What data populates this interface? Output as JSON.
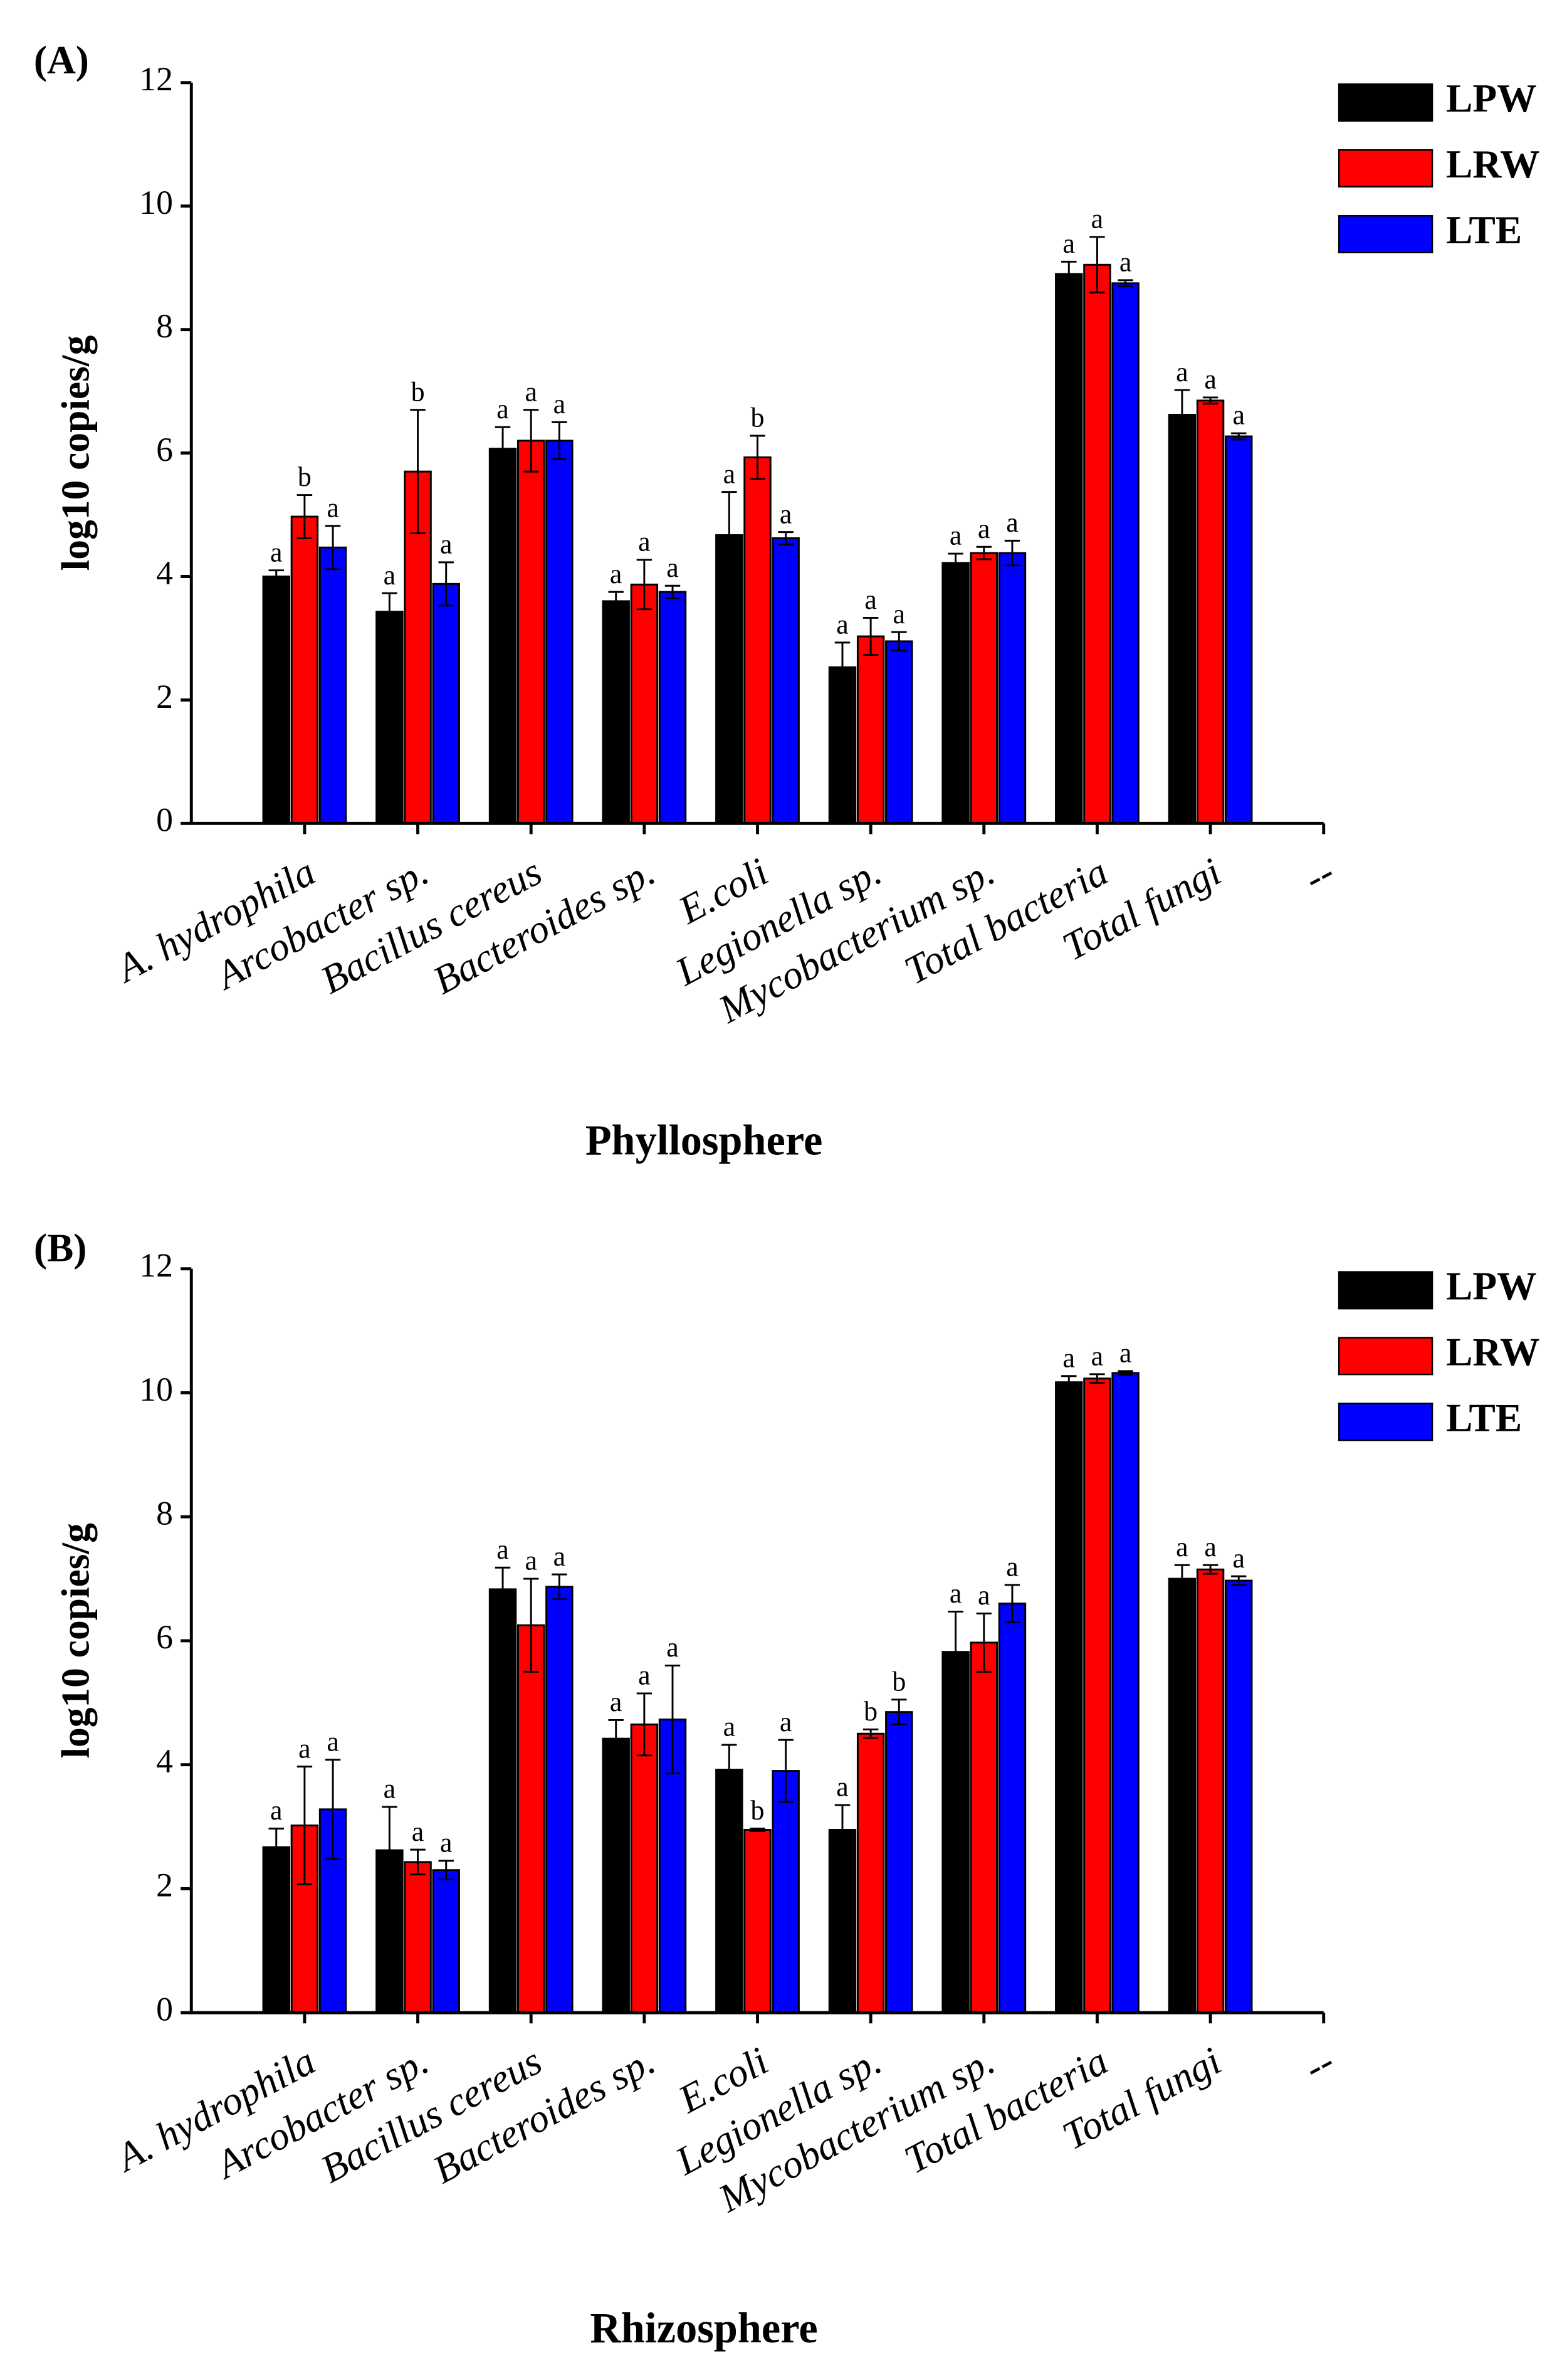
{
  "chart_data": [
    {
      "type": "bar",
      "panel_label": "(A)",
      "x_label": "Phyllosphere",
      "y_label": "log10 copies/g",
      "categories": [
        "A. hydrophila",
        "Arcobacter sp.",
        "Bacillus cereus",
        "Bacteroides sp.",
        "E.coli",
        "Legionella sp.",
        "Mycobacterium sp.",
        "Total bacteria",
        "Total fungi",
        "--"
      ],
      "ylim": [
        0,
        12
      ],
      "yticks": [
        0,
        2,
        4,
        6,
        8,
        10,
        12
      ],
      "legend": "upper right",
      "series": [
        {
          "name": "LPW",
          "color": "#000000",
          "values": [
            4.0,
            3.43,
            6.07,
            3.6,
            4.67,
            2.53,
            4.22,
            8.9,
            6.62,
            null
          ],
          "errors": [
            0.1,
            0.3,
            0.35,
            0.15,
            0.7,
            0.4,
            0.15,
            0.2,
            0.4,
            null
          ],
          "letters": [
            "a",
            "a",
            "a",
            "a",
            "a",
            "a",
            "a",
            "a",
            "a",
            null
          ]
        },
        {
          "name": "LRW",
          "color": "#ff0000",
          "values": [
            4.97,
            5.7,
            6.2,
            3.87,
            5.93,
            3.03,
            4.38,
            9.05,
            6.85,
            null
          ],
          "errors": [
            0.35,
            1.0,
            0.5,
            0.4,
            0.35,
            0.3,
            0.1,
            0.45,
            0.05,
            null
          ],
          "letters": [
            "b",
            "b",
            "a",
            "a",
            "b",
            "a",
            "a",
            "a",
            "a",
            null
          ]
        },
        {
          "name": "LTE",
          "color": "#0000ff",
          "values": [
            4.47,
            3.88,
            6.2,
            3.75,
            4.62,
            2.95,
            4.38,
            8.75,
            6.27,
            null
          ],
          "errors": [
            0.35,
            0.35,
            0.3,
            0.1,
            0.1,
            0.15,
            0.2,
            0.05,
            0.05,
            null
          ],
          "letters": [
            "a",
            "a",
            "a",
            "a",
            "a",
            "a",
            "a",
            "a",
            "a",
            null
          ]
        }
      ]
    },
    {
      "type": "bar",
      "panel_label": "(B)",
      "x_label": "Rhizosphere",
      "y_label": "log10 copies/g",
      "categories": [
        "A. hydrophila",
        "Arcobacter sp.",
        "Bacillus cereus",
        "Bacteroides sp.",
        "E.coli",
        "Legionella sp.",
        "Mycobacterium sp.",
        "Total bacteria",
        "Total fungi",
        "--"
      ],
      "ylim": [
        0,
        12
      ],
      "yticks": [
        0,
        2,
        4,
        6,
        8,
        10,
        12
      ],
      "legend": "upper right",
      "series": [
        {
          "name": "LPW",
          "color": "#000000",
          "values": [
            2.67,
            2.62,
            6.83,
            4.42,
            3.92,
            2.95,
            5.82,
            10.17,
            7.0,
            null
          ],
          "errors": [
            0.3,
            0.7,
            0.35,
            0.3,
            0.4,
            0.4,
            0.65,
            0.1,
            0.22,
            null
          ],
          "letters": [
            "a",
            "a",
            "a",
            "a",
            "a",
            "a",
            "a",
            "a",
            "a",
            null
          ]
        },
        {
          "name": "LRW",
          "color": "#ff0000",
          "values": [
            3.02,
            2.43,
            6.25,
            4.65,
            2.95,
            4.5,
            5.97,
            10.23,
            7.15,
            null
          ],
          "errors": [
            0.95,
            0.2,
            0.75,
            0.5,
            0.02,
            0.07,
            0.47,
            0.07,
            0.07,
            null
          ],
          "letters": [
            "a",
            "a",
            "a",
            "a",
            "b",
            "b",
            "a",
            "a",
            "a",
            null
          ]
        },
        {
          "name": "LTE",
          "color": "#0000ff",
          "values": [
            3.28,
            2.3,
            6.87,
            4.73,
            3.9,
            4.85,
            6.6,
            10.32,
            6.97,
            null
          ],
          "errors": [
            0.8,
            0.15,
            0.2,
            0.87,
            0.5,
            0.2,
            0.3,
            0.03,
            0.07,
            null
          ],
          "letters": [
            "a",
            "a",
            "a",
            "a",
            "a",
            "b",
            "a",
            "a",
            "a",
            null
          ]
        }
      ]
    }
  ]
}
